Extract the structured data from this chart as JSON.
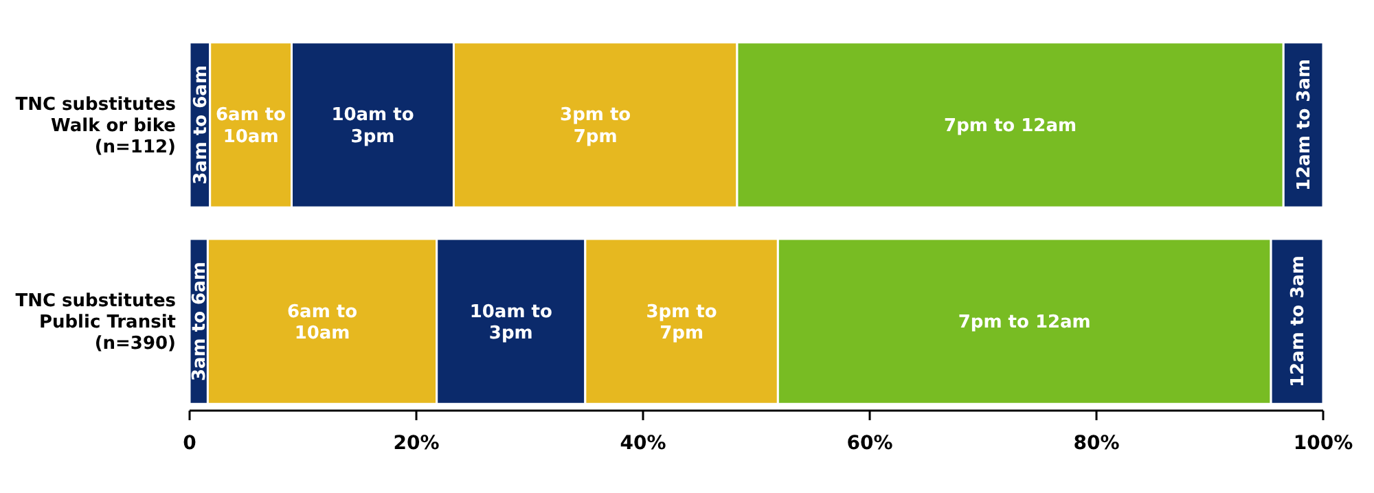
{
  "chart_data": {
    "type": "bar",
    "orientation": "horizontal",
    "stacked": true,
    "grid": false,
    "categories": [
      "TNC substitutes\nWalk or bike\n(n=112)",
      "TNC substitutes\nPublic Transit\n(n=390)"
    ],
    "xlim": [
      0,
      100
    ],
    "xticks": [
      {
        "value": 0,
        "label": "0"
      },
      {
        "value": 20,
        "label": "20%"
      },
      {
        "value": 40,
        "label": "40%"
      },
      {
        "value": 60,
        "label": "60%"
      },
      {
        "value": 80,
        "label": "80%"
      },
      {
        "value": 100,
        "label": "100%"
      }
    ],
    "series": [
      {
        "name": "3am to 6am",
        "color": "#0b2a6b",
        "values": [
          1.8,
          1.6
        ]
      },
      {
        "name": "6am to 10am",
        "color": "#e6b820",
        "values": [
          7.2,
          20.2
        ]
      },
      {
        "name": "10am to 3pm",
        "color": "#0b2a6b",
        "values": [
          14.3,
          13.1
        ]
      },
      {
        "name": "3pm to 7pm",
        "color": "#e6b820",
        "values": [
          25.0,
          17.0
        ]
      },
      {
        "name": "7pm to 12am",
        "color": "#78bc23",
        "values": [
          48.2,
          43.5
        ]
      },
      {
        "name": "12am to 3am",
        "color": "#0b2a6b",
        "values": [
          3.5,
          4.6
        ]
      }
    ]
  }
}
